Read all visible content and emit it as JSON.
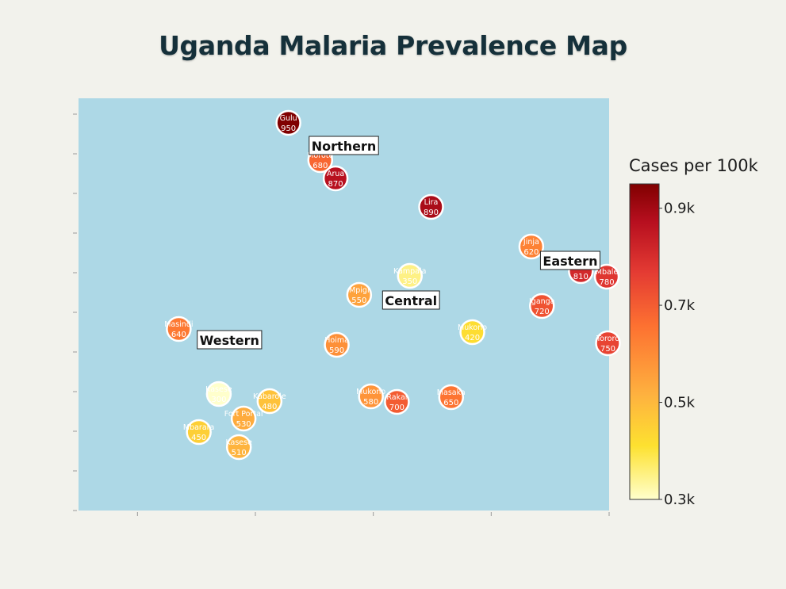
{
  "title": "Uganda Malaria Prevalence Map",
  "colors": {
    "page_background": "#f2f2ec",
    "map_background": "#add8e6",
    "marker_outline": "#ffffff",
    "title": "#15303a",
    "scale_stops": [
      "#ffffcc",
      "#fde130",
      "#feb23f",
      "#fd7131",
      "#e43b33",
      "#b70f1f",
      "#800000"
    ]
  },
  "chart_data": {
    "type": "scatter",
    "title": "Uganda Malaria Prevalence Map",
    "xlabel": "",
    "ylabel": "",
    "color_scale": {
      "title": "Cases per 100k",
      "range": [
        300,
        950
      ],
      "ticks": [
        {
          "value": 900,
          "label": "0.9k"
        },
        {
          "value": 700,
          "label": "0.7k"
        },
        {
          "value": 500,
          "label": "0.5k"
        },
        {
          "value": 300,
          "label": "0.3k"
        }
      ]
    },
    "xlim": [
      29.6,
      34.1
    ],
    "ylim": [
      -1.5,
      3.7
    ],
    "x_tick_values": [
      30.1,
      31.1,
      32.1,
      33.1,
      34.1
    ],
    "y_tick_values": [
      -1.5,
      -1.0,
      -0.5,
      0.0,
      0.5,
      1.0,
      1.5,
      2.0,
      2.5,
      3.0,
      3.5
    ],
    "cities": [
      {
        "name": "Gulu",
        "lon": 31.38,
        "lat": 3.39,
        "cases": 950
      },
      {
        "name": "Moroto",
        "lon": 31.65,
        "lat": 2.92,
        "cases": 680
      },
      {
        "name": "Arua",
        "lon": 31.78,
        "lat": 2.69,
        "cases": 870
      },
      {
        "name": "Lira",
        "lon": 32.59,
        "lat": 2.33,
        "cases": 890
      },
      {
        "name": "Jinja",
        "lon": 33.44,
        "lat": 1.83,
        "cases": 620
      },
      {
        "name": "Mbale",
        "lon": 34.08,
        "lat": 1.45,
        "cases": 780
      },
      {
        "name": "Eastern",
        "lon": 33.86,
        "lat": 1.52,
        "cases": 810
      },
      {
        "name": "Iganga",
        "lon": 33.53,
        "lat": 1.08,
        "cases": 720
      },
      {
        "name": "Kampala",
        "lon": 32.41,
        "lat": 1.46,
        "cases": 350
      },
      {
        "name": "Mpigi",
        "lon": 31.98,
        "lat": 1.22,
        "cases": 550
      },
      {
        "name": "Masindi",
        "lon": 30.45,
        "lat": 0.79,
        "cases": 640
      },
      {
        "name": "Mukono",
        "lon": 32.94,
        "lat": 0.75,
        "cases": 420
      },
      {
        "name": "Tororo",
        "lon": 34.09,
        "lat": 0.61,
        "cases": 750
      },
      {
        "name": "Hoima",
        "lon": 31.79,
        "lat": 0.59,
        "cases": 590
      },
      {
        "name": "Kasese",
        "lon": 30.79,
        "lat": -0.03,
        "cases": 300
      },
      {
        "name": "Kabarole",
        "lon": 31.22,
        "lat": -0.12,
        "cases": 480
      },
      {
        "name": "Mukono",
        "lon": 32.08,
        "lat": -0.06,
        "cases": 580
      },
      {
        "name": "Rakai",
        "lon": 32.3,
        "lat": -0.13,
        "cases": 700
      },
      {
        "name": "Masaka",
        "lon": 32.76,
        "lat": -0.07,
        "cases": 650
      },
      {
        "name": "Fort Portal",
        "lon": 31.0,
        "lat": -0.34,
        "cases": 530
      },
      {
        "name": "Mbarara",
        "lon": 30.62,
        "lat": -0.51,
        "cases": 450
      },
      {
        "name": "Kasese",
        "lon": 30.96,
        "lat": -0.7,
        "cases": 510
      }
    ],
    "regions": [
      {
        "name": "Northern",
        "lon": 31.85,
        "lat": 3.1
      },
      {
        "name": "Eastern",
        "lon": 33.77,
        "lat": 1.65
      },
      {
        "name": "Central",
        "lon": 32.42,
        "lat": 1.15
      },
      {
        "name": "Western",
        "lon": 30.88,
        "lat": 0.65
      }
    ]
  }
}
